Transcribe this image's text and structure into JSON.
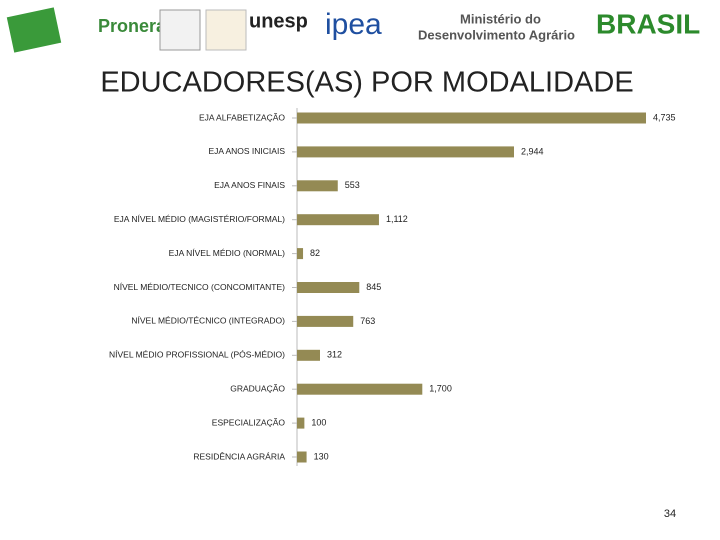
{
  "logos": [
    "Pronera",
    "unesp",
    "ipea",
    "Ministério do",
    "Desenvolvimento Agrário",
    "BRASIL"
  ],
  "page_number": 34,
  "chart_data": {
    "type": "barh",
    "title": "EDUCADORES(AS) POR MODALIDADE",
    "categories": [
      "EJA ALFABETIZAÇÃO",
      "EJA ANOS INICIAIS",
      "EJA ANOS FINAIS",
      "EJA NÍVEL MÉDIO (MAGISTÉRIO/FORMAL)",
      "EJA NÍVEL MÉDIO (NORMAL)",
      "NÍVEL MÉDIO/TECNICO (CONCOMITANTE)",
      "NÍVEL MÉDIO/TÉCNICO (INTEGRADO)",
      "NÍVEL MÉDIO PROFISSIONAL (PÓS-MÉDIO)",
      "GRADUAÇÃO",
      "ESPECIALIZAÇÃO",
      "RESIDÊNCIA AGRÁRIA"
    ],
    "values": [
      4735,
      2944,
      553,
      1112,
      82,
      845,
      763,
      312,
      1700,
      100,
      130
    ],
    "value_labels": [
      "4,735",
      "2,944",
      "553",
      "1,112",
      "82",
      "845",
      "763",
      "312",
      "1,700",
      "100",
      "130"
    ],
    "color": "#948a54"
  }
}
